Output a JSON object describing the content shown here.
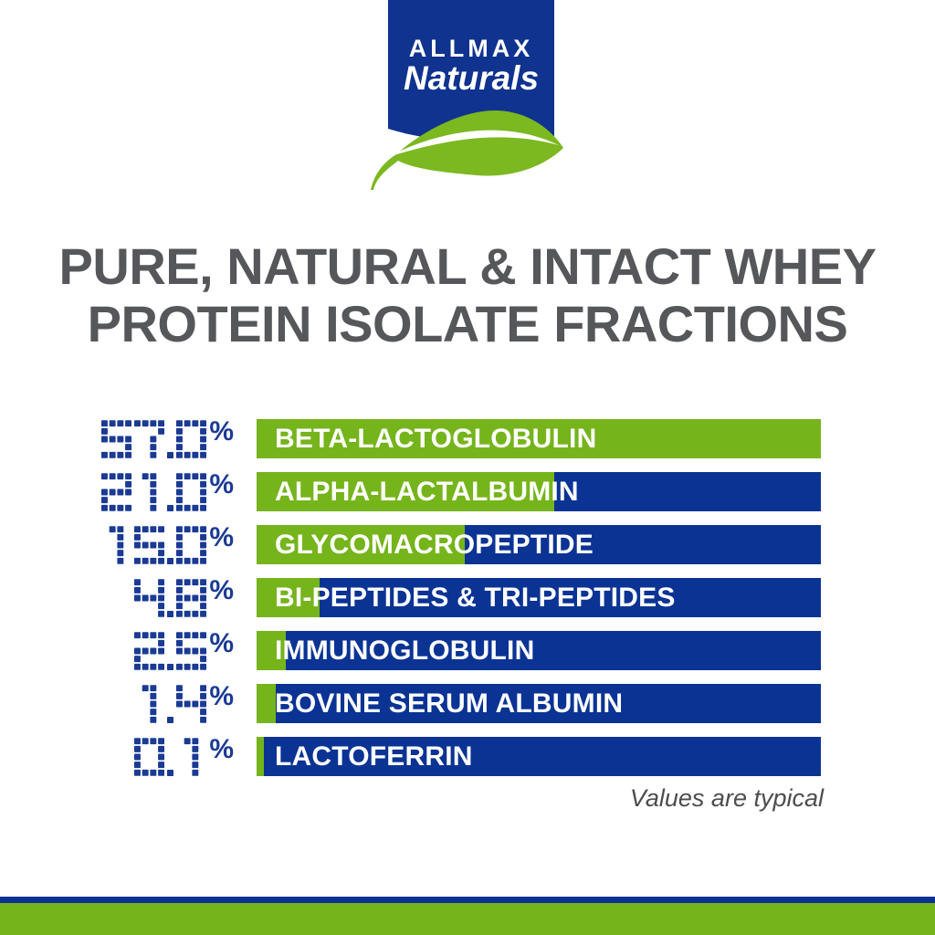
{
  "logo": {
    "brand": "ALLMAX",
    "subbrand": "Naturals"
  },
  "title": {
    "line1": "PURE, NATURAL & INTACT WHEY",
    "line2": "PROTEIN ISOLATE FRACTIONS"
  },
  "footnote": "Values are typical",
  "colors": {
    "bar_blue": "#0a3394",
    "bar_green": "#76b41c",
    "digit_blue": "#1a3a94",
    "logo_blue": "#10338f",
    "leaf_green": "#7cb820",
    "title_gray": "#56575b",
    "footnote_gray": "#4d4d4f"
  },
  "chart_data": {
    "type": "bar",
    "orientation": "horizontal",
    "title": "PURE, NATURAL & INTACT WHEY PROTEIN ISOLATE FRACTIONS",
    "value_unit": "%",
    "note": "Values are typical",
    "legend_position": "none",
    "grid": false,
    "categories": [
      "BETA-LACTOGLOBULIN",
      "ALPHA-LACTALBUMIN",
      "GLYCOMACROPEPTIDE",
      "BI-PEPTIDES & TRI-PEPTIDES",
      "IMMUNOGLOBULIN",
      "BOVINE SERUM ALBUMIN",
      "LACTOFERRIN"
    ],
    "values": [
      57.0,
      21.0,
      15.0,
      4.8,
      2.5,
      1.4,
      0.1
    ],
    "rows": [
      {
        "label": "BETA-LACTOGLOBULIN",
        "value": 57.0,
        "value_display": "57.0%",
        "green_fraction_pct": 100
      },
      {
        "label": "ALPHA-LACTALBUMIN",
        "value": 21.0,
        "value_display": "21.0%",
        "green_fraction_pct": 52.8
      },
      {
        "label": "GLYCOMACROPEPTIDE",
        "value": 15.0,
        "value_display": "15.0%",
        "green_fraction_pct": 36.9
      },
      {
        "label": "BI-PEPTIDES & TRI-PEPTIDES",
        "value": 4.8,
        "value_display": "4.8%",
        "green_fraction_pct": 11.2
      },
      {
        "label": "IMMUNOGLOBULIN",
        "value": 2.5,
        "value_display": "2.5%",
        "green_fraction_pct": 5.2
      },
      {
        "label": "BOVINE SERUM ALBUMIN",
        "value": 1.4,
        "value_display": "1.4%",
        "green_fraction_pct": 3.4
      },
      {
        "label": "LACTOFERRIN",
        "value": 0.1,
        "value_display": "0.1%",
        "green_fraction_pct": 1.3
      }
    ]
  }
}
